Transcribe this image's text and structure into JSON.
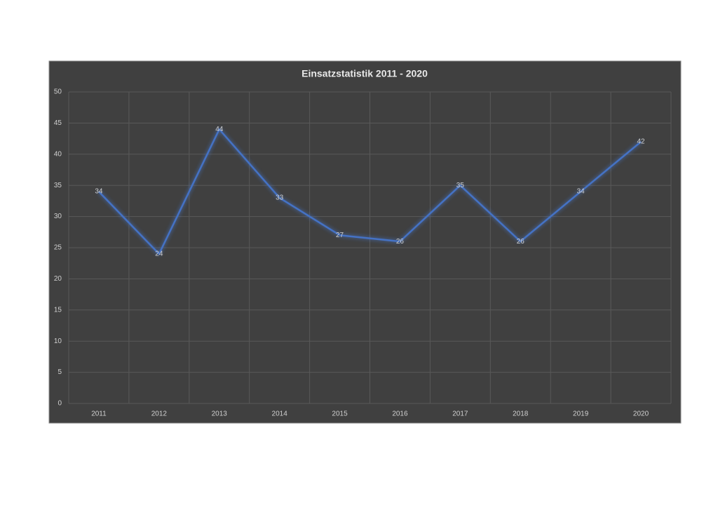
{
  "chart_data": {
    "type": "line",
    "title": "Einsatzstatistik 2011 - 2020",
    "categories": [
      "2011",
      "2012",
      "2013",
      "2014",
      "2015",
      "2016",
      "2017",
      "2018",
      "2019",
      "2020"
    ],
    "values": [
      34,
      24,
      44,
      33,
      27,
      26,
      35,
      26,
      34,
      42
    ],
    "color": "#4472c4",
    "ylim": [
      0,
      50
    ],
    "yticks": [
      0,
      5,
      10,
      15,
      20,
      25,
      30,
      35,
      40,
      45,
      50
    ],
    "grid": true,
    "data_labels": true
  }
}
